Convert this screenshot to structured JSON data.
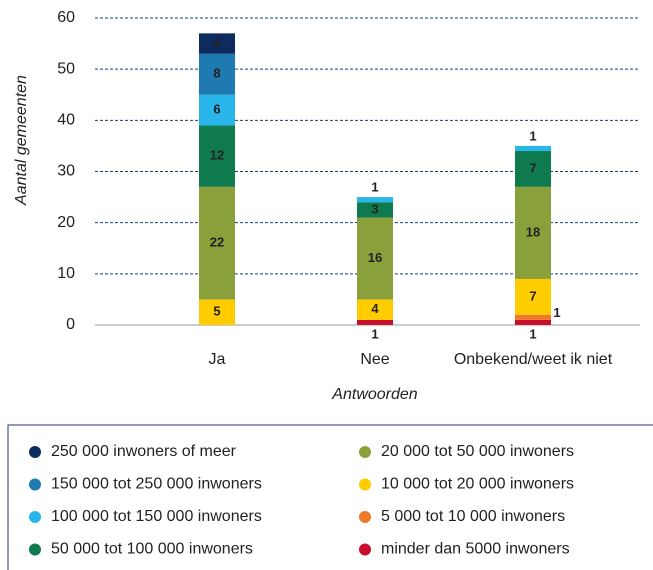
{
  "chart_data": {
    "type": "stacked_bar",
    "x_label": "Antwoorden",
    "y_label": "Aantal gemeenten",
    "categories": [
      "Ja",
      "Nee",
      "Onbekend/weet ik niet"
    ],
    "ylim": [
      0,
      60
    ],
    "yticks": [
      0,
      10,
      20,
      30,
      40,
      50,
      60
    ],
    "grid": true,
    "series": [
      {
        "name": "minder dan 5000 inwoners",
        "color": "#c8102e",
        "values": [
          0,
          1,
          1
        ]
      },
      {
        "name": "5 000 tot 10 000 inwoners",
        "color": "#f07a2a",
        "values": [
          0,
          0,
          1
        ]
      },
      {
        "name": "10 000 tot 20 000 inwoners",
        "color": "#ffcc00",
        "values": [
          5,
          4,
          7
        ]
      },
      {
        "name": "20 000 tot 50 000 inwoners",
        "color": "#8aa03a",
        "values": [
          22,
          16,
          18
        ]
      },
      {
        "name": "50 000 tot 100 000 inwoners",
        "color": "#0f7a4e",
        "values": [
          12,
          3,
          7
        ]
      },
      {
        "name": "100 000 tot 150 000 inwoners",
        "color": "#29b6ea",
        "values": [
          6,
          1,
          1
        ]
      },
      {
        "name": "150 000 tot 250 000 inwoners",
        "color": "#1e7ab0",
        "values": [
          8,
          0,
          0
        ]
      },
      {
        "name": "250 000 inwoners of meer",
        "color": "#0d2b5e",
        "values": [
          4,
          0,
          0
        ]
      }
    ]
  }
}
